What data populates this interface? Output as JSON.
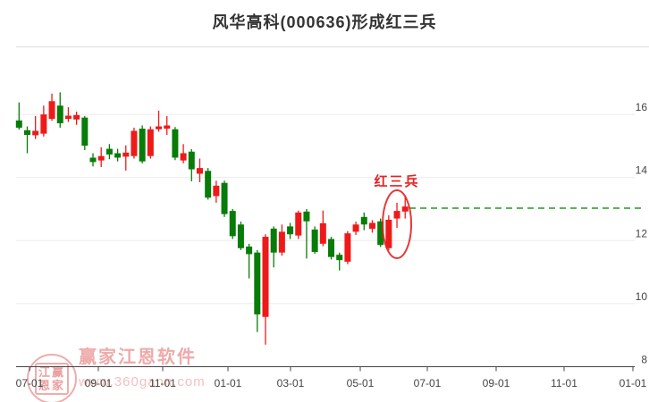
{
  "header": {
    "title": "风华高科(000636)形成红三兵"
  },
  "watermark": {
    "brand": "赢家江恩软件",
    "url": "www.360gann.com",
    "stamp_row1": "江赢",
    "stamp_row2": "恩家"
  },
  "chart_data": {
    "type": "candlestick",
    "title": "风华高科(000636)形成红三兵",
    "stock_name": "风华高科",
    "stock_code": "000636",
    "pattern_name": "红三兵",
    "period": "weekly",
    "grid": "on",
    "legend": "none",
    "y_axis": {
      "ticks": [
        16,
        14,
        12,
        10,
        8
      ],
      "side": "right",
      "ylim": [
        8,
        17.6
      ]
    },
    "x_axis": {
      "labels": [
        "07-01",
        "09-01",
        "11-01",
        "01-01",
        "03-01",
        "05-01",
        "07-01",
        "09-01",
        "11-01",
        "01-01"
      ]
    },
    "dashed_line": {
      "price": 13.03,
      "color": "#1f9e1f",
      "style": "dashed"
    },
    "colors": {
      "up": "#ee1a1a",
      "down": "#087c08",
      "grid": "#ebebeb",
      "axis": "#444444",
      "annotation": "#e62222"
    },
    "annotation": {
      "label": "红三兵",
      "color": "#e62222",
      "circled_candle_indices": [
        45,
        46,
        47
      ]
    },
    "candles": [
      {
        "o": 15.81,
        "h": 16.38,
        "l": 15.52,
        "c": 15.58
      },
      {
        "o": 15.5,
        "h": 15.62,
        "l": 14.77,
        "c": 15.35
      },
      {
        "o": 15.34,
        "h": 15.95,
        "l": 15.22,
        "c": 15.48
      },
      {
        "o": 15.39,
        "h": 16.28,
        "l": 15.3,
        "c": 16.0
      },
      {
        "o": 15.86,
        "h": 16.66,
        "l": 15.8,
        "c": 16.42
      },
      {
        "o": 16.28,
        "h": 16.7,
        "l": 15.58,
        "c": 15.72
      },
      {
        "o": 15.86,
        "h": 16.23,
        "l": 15.76,
        "c": 15.96
      },
      {
        "o": 15.84,
        "h": 16.09,
        "l": 15.67,
        "c": 15.98
      },
      {
        "o": 15.9,
        "h": 15.95,
        "l": 14.87,
        "c": 15.01
      },
      {
        "o": 14.63,
        "h": 14.77,
        "l": 14.35,
        "c": 14.49
      },
      {
        "o": 14.54,
        "h": 14.96,
        "l": 14.33,
        "c": 14.68
      },
      {
        "o": 14.91,
        "h": 15.06,
        "l": 14.58,
        "c": 14.73
      },
      {
        "o": 14.77,
        "h": 14.91,
        "l": 14.51,
        "c": 14.63
      },
      {
        "o": 14.66,
        "h": 15.02,
        "l": 14.22,
        "c": 14.79
      },
      {
        "o": 14.68,
        "h": 15.58,
        "l": 14.6,
        "c": 15.48
      },
      {
        "o": 15.55,
        "h": 15.65,
        "l": 14.45,
        "c": 14.51
      },
      {
        "o": 14.68,
        "h": 15.62,
        "l": 14.6,
        "c": 15.53
      },
      {
        "o": 15.53,
        "h": 16.12,
        "l": 15.45,
        "c": 15.62
      },
      {
        "o": 15.55,
        "h": 15.95,
        "l": 15.35,
        "c": 15.65
      },
      {
        "o": 15.53,
        "h": 15.6,
        "l": 14.55,
        "c": 14.63
      },
      {
        "o": 14.54,
        "h": 15.06,
        "l": 14.45,
        "c": 14.77
      },
      {
        "o": 14.82,
        "h": 14.9,
        "l": 13.88,
        "c": 14.26
      },
      {
        "o": 14.12,
        "h": 14.6,
        "l": 13.85,
        "c": 14.3
      },
      {
        "o": 14.21,
        "h": 14.3,
        "l": 13.3,
        "c": 13.36
      },
      {
        "o": 13.41,
        "h": 13.9,
        "l": 13.2,
        "c": 13.74
      },
      {
        "o": 13.83,
        "h": 13.9,
        "l": 12.75,
        "c": 12.84
      },
      {
        "o": 12.94,
        "h": 13.0,
        "l": 12.05,
        "c": 12.14
      },
      {
        "o": 12.51,
        "h": 12.6,
        "l": 11.7,
        "c": 11.76
      },
      {
        "o": 11.81,
        "h": 11.9,
        "l": 10.8,
        "c": 11.57
      },
      {
        "o": 11.62,
        "h": 11.7,
        "l": 9.1,
        "c": 9.66
      },
      {
        "o": 9.58,
        "h": 12.2,
        "l": 8.7,
        "c": 12.12
      },
      {
        "o": 12.38,
        "h": 12.45,
        "l": 11.15,
        "c": 11.62
      },
      {
        "o": 11.62,
        "h": 12.51,
        "l": 11.52,
        "c": 12.28
      },
      {
        "o": 12.45,
        "h": 12.56,
        "l": 12.05,
        "c": 12.2
      },
      {
        "o": 12.16,
        "h": 12.95,
        "l": 12.05,
        "c": 12.89
      },
      {
        "o": 12.92,
        "h": 13.0,
        "l": 11.43,
        "c": 12.61
      },
      {
        "o": 12.35,
        "h": 12.45,
        "l": 11.58,
        "c": 11.64
      },
      {
        "o": 11.9,
        "h": 12.95,
        "l": 11.82,
        "c": 12.55
      },
      {
        "o": 12.05,
        "h": 12.12,
        "l": 11.4,
        "c": 11.48
      },
      {
        "o": 11.55,
        "h": 11.62,
        "l": 11.05,
        "c": 11.38
      },
      {
        "o": 11.33,
        "h": 12.3,
        "l": 11.25,
        "c": 12.23
      },
      {
        "o": 12.28,
        "h": 12.6,
        "l": 12.18,
        "c": 12.51
      },
      {
        "o": 12.75,
        "h": 12.89,
        "l": 12.33,
        "c": 12.51
      },
      {
        "o": 12.37,
        "h": 12.65,
        "l": 12.25,
        "c": 12.56
      },
      {
        "o": 12.61,
        "h": 12.7,
        "l": 11.8,
        "c": 11.86
      },
      {
        "o": 11.76,
        "h": 12.8,
        "l": 11.7,
        "c": 12.66
      },
      {
        "o": 12.7,
        "h": 13.2,
        "l": 12.4,
        "c": 12.94
      },
      {
        "o": 12.92,
        "h": 13.41,
        "l": 12.7,
        "c": 13.08
      }
    ]
  }
}
